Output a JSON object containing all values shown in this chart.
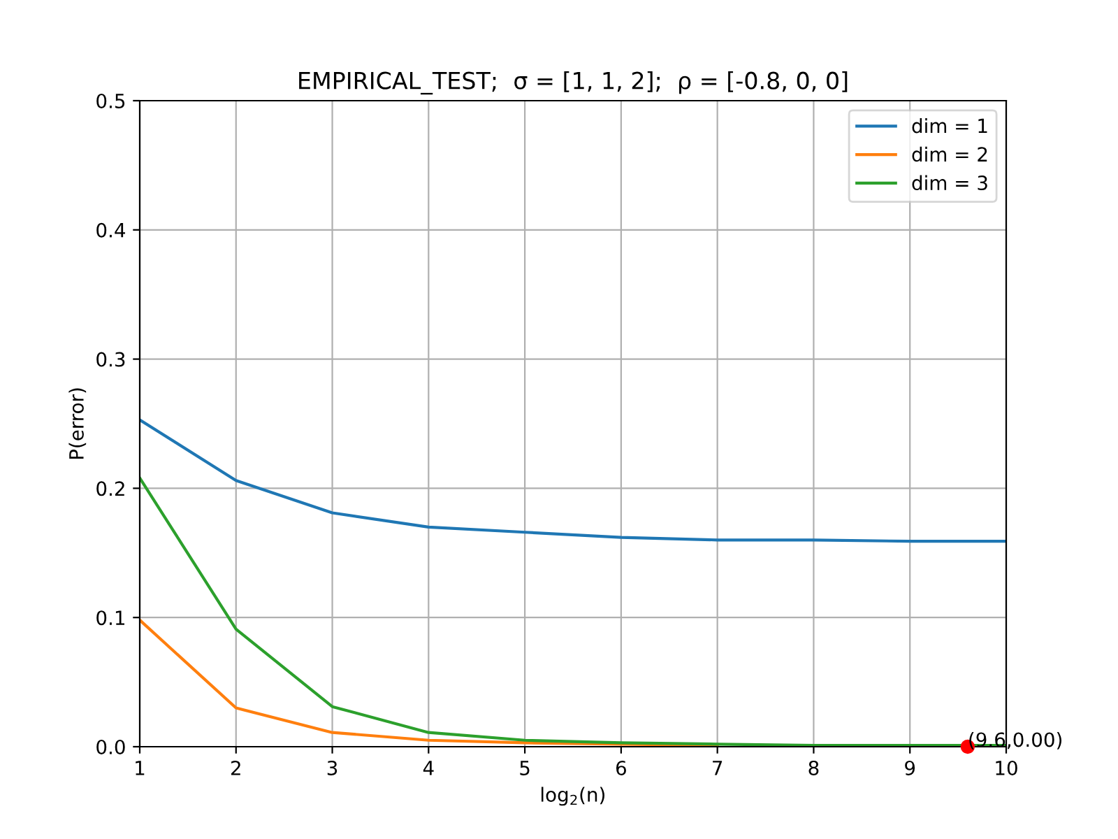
{
  "chart_data": {
    "type": "line",
    "title": "EMPIRICAL_TEST;  σ = [1, 1, 2];  ρ = [-0.8, 0, 0]",
    "xlabel": "log$_{2}$(n)",
    "ylabel": "P(error)",
    "x": [
      1,
      2,
      3,
      4,
      5,
      6,
      7,
      8,
      9,
      10
    ],
    "series": [
      {
        "name": "dim = 1",
        "color": "#1f77b4",
        "values": [
          0.253,
          0.206,
          0.181,
          0.17,
          0.166,
          0.162,
          0.16,
          0.16,
          0.159,
          0.159
        ]
      },
      {
        "name": "dim = 2",
        "color": "#ff7f0e",
        "values": [
          0.098,
          0.03,
          0.011,
          0.005,
          0.003,
          0.002,
          0.001,
          null,
          null,
          null
        ]
      },
      {
        "name": "dim = 3",
        "color": "#2ca02c",
        "values": [
          0.208,
          0.091,
          0.031,
          0.011,
          0.005,
          0.003,
          0.002,
          0.001,
          0.001,
          0.001
        ]
      },
      {
        "type": "scatter",
        "color": "#ff0000",
        "x": [
          9.6
        ],
        "values": [
          0.0
        ]
      }
    ],
    "annotations": [
      {
        "text": "(9.6,0.00)",
        "x": 9.6,
        "y": 0.0
      }
    ],
    "xlim": [
      1,
      10
    ],
    "ylim": [
      0,
      0.5
    ],
    "xticks": [
      1,
      2,
      3,
      4,
      5,
      6,
      7,
      8,
      9,
      10
    ],
    "yticks": [
      {
        "value": 0,
        "label": "0.0"
      },
      0.1,
      0.2,
      0.3,
      0.4,
      0.5
    ],
    "grid": true,
    "legend": "top right"
  }
}
